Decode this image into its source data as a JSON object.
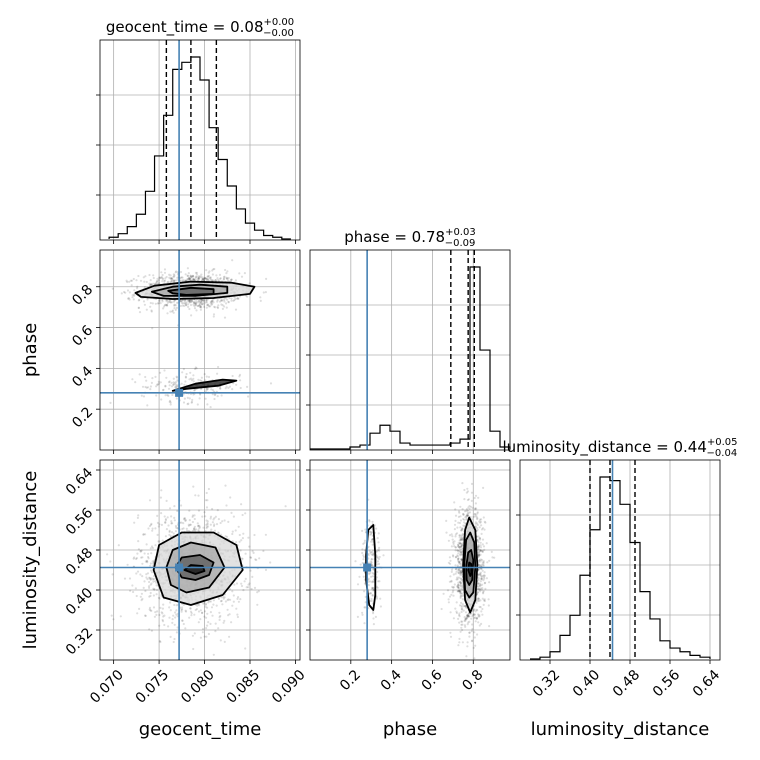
{
  "chart_data": {
    "type": "corner",
    "parameters": [
      "geocent_time",
      "phase",
      "luminosity_distance"
    ],
    "axis_labels": {
      "x": [
        "geocent_time",
        "phase",
        "luminosity_distance"
      ],
      "y": [
        "phase",
        "luminosity_distance"
      ]
    },
    "ranges": {
      "geocent_time": [
        0.0685,
        0.0905
      ],
      "phase": [
        0.0,
        0.98
      ],
      "luminosity_distance": [
        0.26,
        0.66
      ]
    },
    "ticks": {
      "geocent_time": [
        "0.070",
        "0.075",
        "0.080",
        "0.085",
        "0.090"
      ],
      "phase": [
        "0.2",
        "0.4",
        "0.6",
        "0.8"
      ],
      "luminosity_distance": [
        "0.32",
        "0.40",
        "0.48",
        "0.56",
        "0.64"
      ]
    },
    "titles": {
      "geocent_time": {
        "label": "geocent_time = 0.08",
        "plus": "+0.00",
        "minus": "−0.00"
      },
      "phase": {
        "label": "phase = 0.78",
        "plus": "+0.03",
        "minus": "−0.09"
      },
      "luminosity_distance": {
        "label": "luminosity_distance = 0.44",
        "plus": "+0.05",
        "minus": "−0.04"
      }
    },
    "truths": {
      "geocent_time": 0.0772,
      "phase": 0.28,
      "luminosity_distance": 0.445
    },
    "quantiles": {
      "geocent_time": [
        0.0758,
        0.0785,
        0.0813
      ],
      "phase": [
        0.69,
        0.775,
        0.805
      ],
      "luminosity_distance": [
        0.4,
        0.44,
        0.49
      ]
    },
    "histograms": {
      "geocent_time": {
        "edges": [
          0.0695,
          0.0705,
          0.0715,
          0.0725,
          0.0735,
          0.0745,
          0.0755,
          0.0765,
          0.0775,
          0.0785,
          0.0795,
          0.0805,
          0.0815,
          0.0825,
          0.0835,
          0.0845,
          0.0855,
          0.0865,
          0.0875,
          0.0885,
          0.0895
        ],
        "counts": [
          1,
          3,
          7,
          14,
          27,
          47,
          70,
          96,
          100,
          103,
          90,
          63,
          45,
          30,
          17,
          9,
          5,
          2,
          1,
          0
        ]
      },
      "phase": {
        "edges": [
          0.0,
          0.049,
          0.098,
          0.147,
          0.196,
          0.245,
          0.294,
          0.343,
          0.392,
          0.441,
          0.49,
          0.539,
          0.588,
          0.637,
          0.686,
          0.735,
          0.784,
          0.833,
          0.882,
          0.931,
          0.98
        ],
        "counts": [
          0,
          0,
          0,
          0,
          1,
          2,
          8,
          12,
          9,
          3,
          2,
          2,
          2,
          2,
          3,
          5,
          92,
          50,
          9,
          1
        ]
      },
      "luminosity_distance": {
        "edges": [
          0.28,
          0.3,
          0.32,
          0.34,
          0.36,
          0.38,
          0.4,
          0.42,
          0.44,
          0.46,
          0.48,
          0.5,
          0.52,
          0.54,
          0.56,
          0.58,
          0.6,
          0.62,
          0.64
        ],
        "counts": [
          0,
          1,
          4,
          13,
          24,
          46,
          71,
          100,
          98,
          85,
          64,
          37,
          22,
          10,
          6,
          4,
          2,
          1
        ]
      }
    },
    "joint_2d": [
      {
        "x": "geocent_time",
        "y": "phase",
        "modes": [
          {
            "mean": [
              0.0785,
              0.78
            ],
            "sd": [
              0.0022,
              0.035
            ],
            "weight": 0.85
          },
          {
            "mean": [
              0.0785,
              0.31
            ],
            "sd": [
              0.0022,
              0.03
            ],
            "weight": 0.15
          }
        ],
        "contours": [
          [
            [
              0.0724,
              0.77
            ],
            [
              0.0745,
              0.805
            ],
            [
              0.0785,
              0.825
            ],
            [
              0.083,
              0.82
            ],
            [
              0.0855,
              0.8
            ],
            [
              0.085,
              0.765
            ],
            [
              0.081,
              0.745
            ],
            [
              0.0765,
              0.74
            ],
            [
              0.073,
              0.75
            ]
          ],
          [
            [
              0.0742,
              0.775
            ],
            [
              0.0765,
              0.8
            ],
            [
              0.0795,
              0.81
            ],
            [
              0.0825,
              0.8
            ],
            [
              0.0825,
              0.77
            ],
            [
              0.079,
              0.755
            ],
            [
              0.0755,
              0.755
            ]
          ],
          [
            [
              0.076,
              0.78
            ],
            [
              0.0785,
              0.795
            ],
            [
              0.081,
              0.788
            ],
            [
              0.081,
              0.765
            ],
            [
              0.078,
              0.76
            ],
            [
              0.0765,
              0.768
            ]
          ],
          [
            [
              0.0765,
              0.29
            ],
            [
              0.079,
              0.325
            ],
            [
              0.082,
              0.345
            ],
            [
              0.0835,
              0.34
            ],
            [
              0.0815,
              0.315
            ],
            [
              0.078,
              0.3
            ]
          ]
        ]
      },
      {
        "x": "geocent_time",
        "y": "luminosity_distance",
        "modes": [
          {
            "mean": [
              0.0785,
              0.445
            ],
            "sd": [
              0.0023,
              0.045
            ],
            "weight": 1.0
          }
        ],
        "contours": [
          [
            [
              0.0744,
              0.44
            ],
            [
              0.075,
              0.49
            ],
            [
              0.0775,
              0.515
            ],
            [
              0.081,
              0.515
            ],
            [
              0.0835,
              0.49
            ],
            [
              0.0842,
              0.44
            ],
            [
              0.082,
              0.39
            ],
            [
              0.0785,
              0.37
            ],
            [
              0.0755,
              0.385
            ]
          ],
          [
            [
              0.0758,
              0.445
            ],
            [
              0.0765,
              0.48
            ],
            [
              0.0785,
              0.495
            ],
            [
              0.0812,
              0.485
            ],
            [
              0.0822,
              0.445
            ],
            [
              0.0805,
              0.405
            ],
            [
              0.078,
              0.395
            ],
            [
              0.0763,
              0.41
            ]
          ],
          [
            [
              0.0768,
              0.445
            ],
            [
              0.0775,
              0.465
            ],
            [
              0.0795,
              0.47
            ],
            [
              0.081,
              0.455
            ],
            [
              0.0805,
              0.43
            ],
            [
              0.079,
              0.42
            ],
            [
              0.0775,
              0.425
            ]
          ],
          [
            [
              0.0778,
              0.44
            ],
            [
              0.0785,
              0.45
            ],
            [
              0.0798,
              0.448
            ],
            [
              0.08,
              0.438
            ],
            [
              0.079,
              0.432
            ]
          ]
        ]
      },
      {
        "x": "phase",
        "y": "luminosity_distance",
        "modes": [
          {
            "mean": [
              0.78,
              0.445
            ],
            "sd": [
              0.03,
              0.045
            ],
            "weight": 0.85
          },
          {
            "mean": [
              0.3,
              0.445
            ],
            "sd": [
              0.02,
              0.04
            ],
            "weight": 0.15
          }
        ],
        "contours": [
          [
            [
              0.75,
              0.45
            ],
            [
              0.76,
              0.52
            ],
            [
              0.78,
              0.545
            ],
            [
              0.81,
              0.52
            ],
            [
              0.82,
              0.45
            ],
            [
              0.81,
              0.38
            ],
            [
              0.785,
              0.355
            ],
            [
              0.76,
              0.38
            ]
          ],
          [
            [
              0.755,
              0.445
            ],
            [
              0.765,
              0.5
            ],
            [
              0.785,
              0.515
            ],
            [
              0.805,
              0.495
            ],
            [
              0.81,
              0.445
            ],
            [
              0.8,
              0.395
            ],
            [
              0.78,
              0.385
            ],
            [
              0.76,
              0.4
            ]
          ],
          [
            [
              0.765,
              0.445
            ],
            [
              0.775,
              0.475
            ],
            [
              0.79,
              0.48
            ],
            [
              0.8,
              0.46
            ],
            [
              0.795,
              0.42
            ],
            [
              0.78,
              0.41
            ],
            [
              0.768,
              0.42
            ]
          ],
          [
            [
              0.775,
              0.44
            ],
            [
              0.78,
              0.455
            ],
            [
              0.79,
              0.452
            ],
            [
              0.792,
              0.435
            ],
            [
              0.785,
              0.428
            ]
          ],
          [
            [
              0.275,
              0.47
            ],
            [
              0.285,
              0.52
            ],
            [
              0.31,
              0.53
            ],
            [
              0.32,
              0.47
            ],
            [
              0.32,
              0.39
            ],
            [
              0.31,
              0.36
            ],
            [
              0.29,
              0.37
            ],
            [
              0.275,
              0.42
            ]
          ]
        ]
      }
    ]
  }
}
